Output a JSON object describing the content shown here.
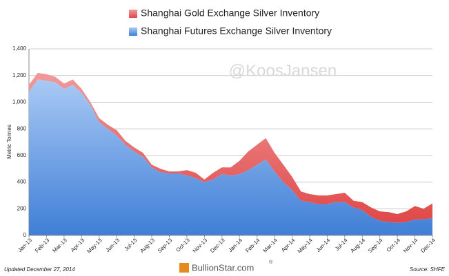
{
  "chart_data": {
    "type": "stacked_area",
    "y_axis_label": "Metric Tonnes",
    "watermark": "@KoosJansen",
    "footer_left": "Updated December 27, 2014",
    "footer_logo": "BullionStar.com",
    "footer_logo_mark": "®",
    "footer_right": "Source: SHFE",
    "categories": [
      "Jan-13",
      null,
      "Feb-13",
      null,
      "Mar-13",
      null,
      "Apr-13",
      null,
      "May-13",
      null,
      "Jun-13",
      null,
      "Jul-13",
      null,
      "Aug-13",
      null,
      "Sep-13",
      null,
      "Oct-13",
      null,
      "Nov-13",
      null,
      "Dec-13",
      null,
      "Jan-14",
      null,
      "Feb-14",
      null,
      "Mar-14",
      null,
      "Apr-14",
      null,
      "May-14",
      null,
      "Jun-14",
      null,
      "Jul-14",
      null,
      "Aug-14",
      null,
      "Sep-14",
      null,
      "Oct-14",
      null,
      "Nov-14",
      null,
      "Dec-14"
    ],
    "series": [
      {
        "name": "Shanghai Futures Exchange Silver Inventory",
        "color": "#3f7fd6",
        "values": [
          1080,
          1170,
          1160,
          1150,
          1100,
          1130,
          1070,
          980,
          850,
          800,
          750,
          680,
          630,
          590,
          510,
          475,
          465,
          465,
          450,
          430,
          400,
          420,
          460,
          450,
          460,
          490,
          530,
          570,
          480,
          400,
          340,
          260,
          250,
          235,
          235,
          250,
          250,
          210,
          190,
          140,
          110,
          100,
          95,
          100,
          120,
          120,
          130
        ]
      },
      {
        "name": "Shanghai Gold Exchange Silver Inventory",
        "color": "#e04848",
        "values": [
          50,
          50,
          50,
          40,
          40,
          40,
          30,
          20,
          30,
          30,
          40,
          30,
          30,
          30,
          20,
          25,
          15,
          15,
          40,
          40,
          20,
          50,
          50,
          60,
          100,
          140,
          150,
          160,
          140,
          130,
          100,
          70,
          60,
          65,
          65,
          60,
          70,
          50,
          60,
          70,
          70,
          75,
          65,
          80,
          100,
          80,
          110
        ]
      }
    ],
    "ylim": [
      0,
      1400
    ],
    "yticks": [
      0,
      200,
      400,
      600,
      800,
      {
        "value": 1000,
        "label": "1,000"
      },
      {
        "value": 1200,
        "label": "1,200"
      },
      {
        "value": 1400,
        "label": "1,400"
      }
    ],
    "grid": true
  }
}
